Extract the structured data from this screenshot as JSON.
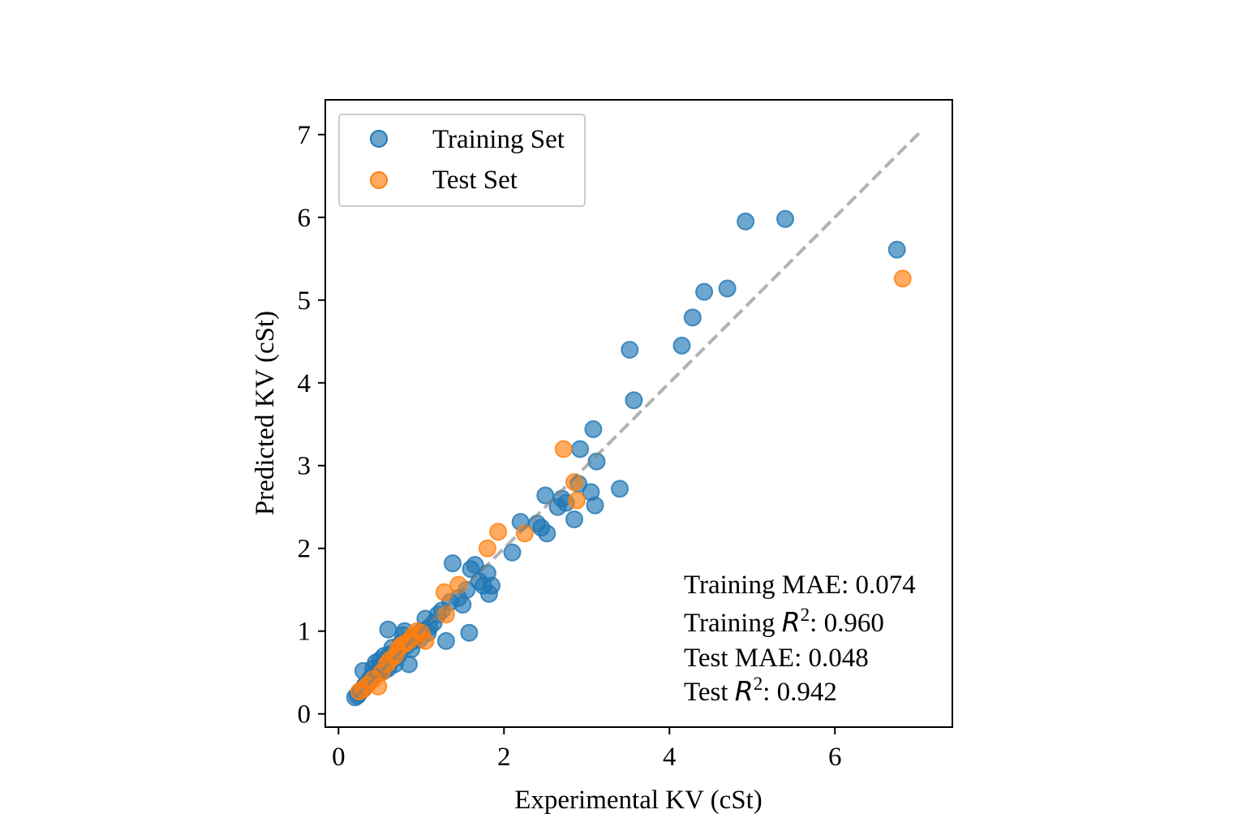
{
  "chart_data": {
    "type": "scatter",
    "title": "",
    "xlabel": "Experimental KV (cSt)",
    "ylabel": "Predicted KV (cSt)",
    "xlim": [
      -0.16,
      7.42
    ],
    "ylim": [
      -0.16,
      7.42
    ],
    "xticks": [
      0,
      2,
      4,
      6
    ],
    "yticks": [
      0,
      1,
      2,
      3,
      4,
      5,
      6,
      7
    ],
    "xtick_labels": [
      "0",
      "2",
      "4",
      "6"
    ],
    "ytick_labels": [
      "0",
      "1",
      "2",
      "3",
      "4",
      "5",
      "6",
      "7"
    ],
    "grid": false,
    "legend_position": "top-left",
    "reference_line": {
      "style": "dashed",
      "color": "#aaaaaa",
      "from": [
        0.2,
        0.2
      ],
      "to": [
        7.05,
        7.05
      ]
    },
    "series": [
      {
        "name": "Training Set",
        "color": "#1f77b4",
        "points": [
          [
            0.2,
            0.2
          ],
          [
            0.23,
            0.22
          ],
          [
            0.25,
            0.25
          ],
          [
            0.27,
            0.28
          ],
          [
            0.3,
            0.3
          ],
          [
            0.32,
            0.35
          ],
          [
            0.3,
            0.52
          ],
          [
            0.35,
            0.38
          ],
          [
            0.38,
            0.42
          ],
          [
            0.4,
            0.45
          ],
          [
            0.42,
            0.55
          ],
          [
            0.45,
            0.48
          ],
          [
            0.45,
            0.62
          ],
          [
            0.48,
            0.5
          ],
          [
            0.5,
            0.55
          ],
          [
            0.5,
            0.65
          ],
          [
            0.52,
            0.58
          ],
          [
            0.55,
            0.52
          ],
          [
            0.55,
            0.7
          ],
          [
            0.58,
            0.62
          ],
          [
            0.6,
            0.55
          ],
          [
            0.6,
            1.02
          ],
          [
            0.62,
            0.72
          ],
          [
            0.65,
            0.65
          ],
          [
            0.65,
            0.8
          ],
          [
            0.68,
            0.6
          ],
          [
            0.7,
            0.75
          ],
          [
            0.72,
            0.7
          ],
          [
            0.75,
            0.85
          ],
          [
            0.78,
            0.95
          ],
          [
            0.8,
            1.0
          ],
          [
            0.82,
            0.82
          ],
          [
            0.85,
            0.6
          ],
          [
            0.85,
            0.9
          ],
          [
            0.88,
            0.78
          ],
          [
            0.9,
            0.88
          ],
          [
            0.95,
            0.95
          ],
          [
            0.98,
            0.9
          ],
          [
            1.0,
            1.0
          ],
          [
            1.05,
            1.15
          ],
          [
            1.08,
            0.98
          ],
          [
            1.1,
            1.05
          ],
          [
            1.15,
            1.1
          ],
          [
            1.2,
            1.2
          ],
          [
            1.25,
            1.25
          ],
          [
            1.3,
            0.88
          ],
          [
            1.35,
            1.35
          ],
          [
            1.38,
            1.82
          ],
          [
            1.45,
            1.4
          ],
          [
            1.5,
            1.32
          ],
          [
            1.55,
            1.5
          ],
          [
            1.58,
            0.98
          ],
          [
            1.6,
            1.75
          ],
          [
            1.65,
            1.8
          ],
          [
            1.7,
            1.6
          ],
          [
            1.75,
            1.55
          ],
          [
            1.8,
            1.7
          ],
          [
            1.82,
            1.45
          ],
          [
            1.85,
            1.55
          ],
          [
            2.1,
            1.95
          ],
          [
            2.2,
            2.32
          ],
          [
            2.4,
            2.3
          ],
          [
            2.45,
            2.25
          ],
          [
            2.5,
            2.64
          ],
          [
            2.52,
            2.18
          ],
          [
            2.65,
            2.5
          ],
          [
            2.7,
            2.6
          ],
          [
            2.75,
            2.55
          ],
          [
            2.85,
            2.35
          ],
          [
            2.9,
            2.78
          ],
          [
            2.92,
            3.2
          ],
          [
            3.05,
            2.68
          ],
          [
            3.08,
            3.44
          ],
          [
            3.1,
            2.52
          ],
          [
            3.12,
            3.05
          ],
          [
            3.4,
            2.72
          ],
          [
            3.52,
            4.4
          ],
          [
            3.57,
            3.79
          ],
          [
            4.15,
            4.45
          ],
          [
            4.28,
            4.79
          ],
          [
            4.42,
            5.1
          ],
          [
            4.7,
            5.14
          ],
          [
            4.92,
            5.95
          ],
          [
            5.4,
            5.98
          ],
          [
            6.75,
            5.61
          ]
        ]
      },
      {
        "name": "Test Set",
        "color": "#ff7f0e",
        "points": [
          [
            0.25,
            0.27
          ],
          [
            0.3,
            0.3
          ],
          [
            0.35,
            0.35
          ],
          [
            0.42,
            0.42
          ],
          [
            0.48,
            0.33
          ],
          [
            0.52,
            0.5
          ],
          [
            0.58,
            0.6
          ],
          [
            0.62,
            0.65
          ],
          [
            0.68,
            0.7
          ],
          [
            0.72,
            0.78
          ],
          [
            0.75,
            0.82
          ],
          [
            0.8,
            0.85
          ],
          [
            0.85,
            0.88
          ],
          [
            0.9,
            0.95
          ],
          [
            0.95,
            1.0
          ],
          [
            1.0,
            0.98
          ],
          [
            1.05,
            0.88
          ],
          [
            1.28,
            1.47
          ],
          [
            1.3,
            1.2
          ],
          [
            1.45,
            1.56
          ],
          [
            1.8,
            2.0
          ],
          [
            1.93,
            2.2
          ],
          [
            2.25,
            2.18
          ],
          [
            2.72,
            3.2
          ],
          [
            2.85,
            2.8
          ],
          [
            2.88,
            2.58
          ],
          [
            6.82,
            5.26
          ]
        ]
      }
    ],
    "annotations": [
      {
        "label": "Training MAE",
        "value": "0.074"
      },
      {
        "label": "Training",
        "symbol": "R",
        "power": "2",
        "value": "0.960"
      },
      {
        "label": "Test MAE",
        "value": "0.048"
      },
      {
        "label": "Test",
        "symbol": "R",
        "power": "2",
        "value": "0.942"
      }
    ]
  }
}
